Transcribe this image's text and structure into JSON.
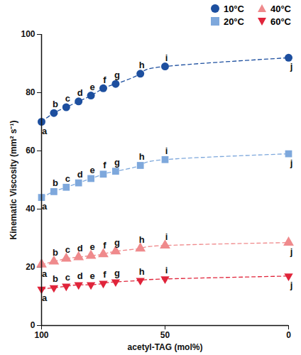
{
  "chart_data": {
    "type": "scatter",
    "x_label": "acetyl-TAG (mol%)",
    "y_label": "Kinematic Viscosity (mm² s⁻¹)",
    "x": [
      100,
      95,
      90,
      85,
      80,
      75,
      70,
      60,
      50,
      0
    ],
    "labels": [
      "a",
      "b",
      "c",
      "d",
      "e",
      "f",
      "g",
      "h",
      "i",
      "j"
    ],
    "series": [
      {
        "name": "10°C",
        "color": "#1d4f9f",
        "marker": "circle",
        "line_style": "dashed",
        "values": [
          70,
          73,
          75,
          77,
          79,
          81.5,
          83,
          86.5,
          89,
          92
        ]
      },
      {
        "name": "20°C",
        "color": "#7ea8dc",
        "marker": "square",
        "line_style": "dashed",
        "values": [
          44,
          46,
          47.5,
          49,
          50.5,
          52,
          53,
          55,
          57,
          59
        ]
      },
      {
        "name": "40°C",
        "color": "#ef8a8c",
        "marker": "triangle",
        "line_style": "dashed",
        "values": [
          21,
          22,
          23,
          23.5,
          24,
          24.5,
          25.5,
          26.5,
          27.5,
          28.5
        ]
      },
      {
        "name": "60°C",
        "color": "#e0243a",
        "marker": "triangle-down",
        "line_style": "dashed",
        "values": [
          12.5,
          13,
          13.5,
          14,
          14,
          14.5,
          15,
          15.5,
          16,
          17
        ]
      }
    ],
    "xlim": [
      100,
      0
    ],
    "xticks": [
      100,
      50,
      0
    ],
    "ylim": [
      0,
      100
    ],
    "yticks": [
      0,
      20,
      40,
      60,
      80,
      100
    ],
    "grid": false
  }
}
